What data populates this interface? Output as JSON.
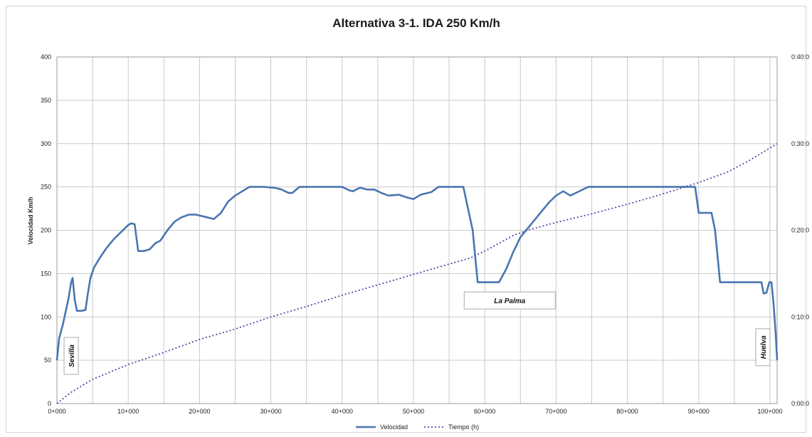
{
  "chart_data": {
    "type": "line",
    "title": "Alternativa 3-1. IDA 250 Km/h",
    "ylabel": "Velocidad Km/h",
    "xlabel": "",
    "xlim": [
      0,
      101000
    ],
    "ylim": [
      0,
      400
    ],
    "y2lim_minutes": [
      0,
      40
    ],
    "x_ticks": [
      "0+000",
      "10+000",
      "20+000",
      "30+000",
      "40+000",
      "50+000",
      "60+000",
      "70+000",
      "80+000",
      "90+000",
      "100+000"
    ],
    "x_tick_values": [
      0,
      10000,
      20000,
      30000,
      40000,
      50000,
      60000,
      70000,
      80000,
      90000,
      100000
    ],
    "y_ticks": [
      "0",
      "50",
      "100",
      "150",
      "200",
      "250",
      "300",
      "350",
      "400"
    ],
    "y_tick_values": [
      0,
      50,
      100,
      150,
      200,
      250,
      300,
      350,
      400
    ],
    "y2_ticks": [
      "0:00:0",
      "0:10:0",
      "0:20:0",
      "0:30:0",
      "0:40:0"
    ],
    "y2_tick_values": [
      0,
      10,
      20,
      30,
      40
    ],
    "grid": true,
    "legend": "bottom",
    "series": [
      {
        "name": "Velocidad",
        "axis": "left",
        "style": "solid",
        "color": "#4a76b0",
        "points": [
          [
            0,
            50
          ],
          [
            300,
            75
          ],
          [
            800,
            90
          ],
          [
            1200,
            105
          ],
          [
            1600,
            120
          ],
          [
            2000,
            140
          ],
          [
            2200,
            145
          ],
          [
            2500,
            120
          ],
          [
            2800,
            107
          ],
          [
            3500,
            107
          ],
          [
            4000,
            108
          ],
          [
            4300,
            125
          ],
          [
            4700,
            145
          ],
          [
            5200,
            157
          ],
          [
            6000,
            168
          ],
          [
            7000,
            180
          ],
          [
            8000,
            190
          ],
          [
            9000,
            198
          ],
          [
            10000,
            206
          ],
          [
            10400,
            208
          ],
          [
            10900,
            207
          ],
          [
            11400,
            176
          ],
          [
            12200,
            176
          ],
          [
            13000,
            178
          ],
          [
            13800,
            185
          ],
          [
            14500,
            188
          ],
          [
            15500,
            200
          ],
          [
            16500,
            210
          ],
          [
            17500,
            215
          ],
          [
            18500,
            218
          ],
          [
            19500,
            218
          ],
          [
            21000,
            215
          ],
          [
            22000,
            213
          ],
          [
            23000,
            220
          ],
          [
            24000,
            233
          ],
          [
            25000,
            240
          ],
          [
            26000,
            245
          ],
          [
            27000,
            250
          ],
          [
            29000,
            250
          ],
          [
            30500,
            249
          ],
          [
            31500,
            247
          ],
          [
            32500,
            243
          ],
          [
            33000,
            243
          ],
          [
            34000,
            250
          ],
          [
            40000,
            250
          ],
          [
            41000,
            246
          ],
          [
            41500,
            245
          ],
          [
            42500,
            249
          ],
          [
            43500,
            247
          ],
          [
            44500,
            247
          ],
          [
            45500,
            243
          ],
          [
            46500,
            240
          ],
          [
            48000,
            241
          ],
          [
            49000,
            238
          ],
          [
            50000,
            236
          ],
          [
            51000,
            241
          ],
          [
            52000,
            243
          ],
          [
            52500,
            244
          ],
          [
            53500,
            250
          ],
          [
            57000,
            250
          ],
          [
            58300,
            200
          ],
          [
            59000,
            140
          ],
          [
            62000,
            140
          ],
          [
            63000,
            155
          ],
          [
            64000,
            175
          ],
          [
            65000,
            192
          ],
          [
            66000,
            202
          ],
          [
            67000,
            212
          ],
          [
            68000,
            222
          ],
          [
            69000,
            232
          ],
          [
            70000,
            240
          ],
          [
            71000,
            245
          ],
          [
            72000,
            240
          ],
          [
            73500,
            246
          ],
          [
            74500,
            250
          ],
          [
            89500,
            250
          ],
          [
            90000,
            220
          ],
          [
            91800,
            220
          ],
          [
            92300,
            200
          ],
          [
            93000,
            140
          ],
          [
            98800,
            140
          ],
          [
            99100,
            127
          ],
          [
            99500,
            128
          ],
          [
            99900,
            140
          ],
          [
            100200,
            140
          ],
          [
            100500,
            115
          ],
          [
            100800,
            80
          ],
          [
            101000,
            50
          ]
        ]
      },
      {
        "name": "Tiempo (h)",
        "axis": "right",
        "style": "dotted",
        "color": "#4b4ba6",
        "points": [
          [
            0,
            0
          ],
          [
            2000,
            1.3
          ],
          [
            5000,
            2.8
          ],
          [
            10000,
            4.5
          ],
          [
            15000,
            5.9
          ],
          [
            20000,
            7.4
          ],
          [
            25000,
            8.6
          ],
          [
            30000,
            10.0
          ],
          [
            35000,
            11.2
          ],
          [
            40000,
            12.5
          ],
          [
            45000,
            13.7
          ],
          [
            50000,
            14.9
          ],
          [
            55000,
            16.1
          ],
          [
            58000,
            16.8
          ],
          [
            60000,
            17.6
          ],
          [
            62000,
            18.5
          ],
          [
            64000,
            19.4
          ],
          [
            66000,
            20.0
          ],
          [
            70000,
            20.9
          ],
          [
            75000,
            21.9
          ],
          [
            80000,
            23.0
          ],
          [
            85000,
            24.2
          ],
          [
            90000,
            25.5
          ],
          [
            94000,
            26.7
          ],
          [
            97000,
            28.0
          ],
          [
            101000,
            30.0
          ]
        ]
      }
    ],
    "annotations": [
      {
        "text": "Sevilla",
        "x": 2000,
        "y": 55,
        "orientation": "vertical"
      },
      {
        "text": "La Palma",
        "x": 63500,
        "y": 119,
        "orientation": "horizontal"
      },
      {
        "text": "Huelva",
        "x": 99000,
        "y": 65,
        "orientation": "vertical"
      }
    ]
  }
}
